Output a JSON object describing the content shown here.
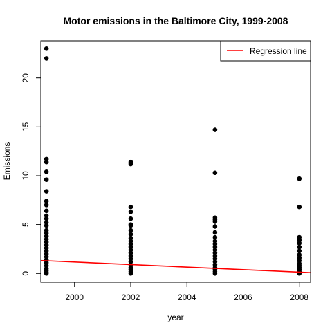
{
  "chart_data": {
    "type": "scatter",
    "title": "Motor emissions in the Baltimore City, 1999-2008",
    "xlabel": "year",
    "ylabel": "Emissions",
    "xlim": [
      1998.8,
      2008.4
    ],
    "ylim": [
      -0.9,
      23.8
    ],
    "x_ticks": [
      2000,
      2002,
      2004,
      2006,
      2008
    ],
    "y_ticks": [
      0,
      5,
      10,
      15,
      20
    ],
    "grid": false,
    "legend": {
      "position": "top-right",
      "entries": [
        {
          "label": "Regression line",
          "color": "#ff0000"
        }
      ]
    },
    "series": [
      {
        "kind": "points",
        "color": "#000000",
        "points": [
          {
            "x": 1999,
            "y": 23.0
          },
          {
            "x": 1999,
            "y": 22.0
          },
          {
            "x": 1999,
            "y": 11.7
          },
          {
            "x": 1999,
            "y": 11.4
          },
          {
            "x": 1999,
            "y": 10.4
          },
          {
            "x": 1999,
            "y": 9.6
          },
          {
            "x": 1999,
            "y": 8.4
          },
          {
            "x": 1999,
            "y": 7.4
          },
          {
            "x": 1999,
            "y": 7.0
          },
          {
            "x": 1999,
            "y": 6.4
          },
          {
            "x": 1999,
            "y": 5.9
          },
          {
            "x": 1999,
            "y": 5.6
          },
          {
            "x": 1999,
            "y": 5.2
          },
          {
            "x": 1999,
            "y": 4.9
          },
          {
            "x": 1999,
            "y": 4.4
          },
          {
            "x": 1999,
            "y": 4.1
          },
          {
            "x": 1999,
            "y": 3.8
          },
          {
            "x": 1999,
            "y": 3.5
          },
          {
            "x": 1999,
            "y": 3.2
          },
          {
            "x": 1999,
            "y": 2.9
          },
          {
            "x": 1999,
            "y": 2.6
          },
          {
            "x": 1999,
            "y": 2.3
          },
          {
            "x": 1999,
            "y": 2.0
          },
          {
            "x": 1999,
            "y": 1.7
          },
          {
            "x": 1999,
            "y": 1.4
          },
          {
            "x": 1999,
            "y": 1.1
          },
          {
            "x": 1999,
            "y": 0.8
          },
          {
            "x": 1999,
            "y": 0.5
          },
          {
            "x": 1999,
            "y": 0.3
          },
          {
            "x": 1999,
            "y": 0.1
          },
          {
            "x": 1999,
            "y": 0.0
          },
          {
            "x": 2002,
            "y": 11.4
          },
          {
            "x": 2002,
            "y": 11.2
          },
          {
            "x": 2002,
            "y": 6.8
          },
          {
            "x": 2002,
            "y": 6.3
          },
          {
            "x": 2002,
            "y": 5.6
          },
          {
            "x": 2002,
            "y": 5.0
          },
          {
            "x": 2002,
            "y": 4.9
          },
          {
            "x": 2002,
            "y": 4.4
          },
          {
            "x": 2002,
            "y": 4.0
          },
          {
            "x": 2002,
            "y": 3.6
          },
          {
            "x": 2002,
            "y": 3.3
          },
          {
            "x": 2002,
            "y": 3.0
          },
          {
            "x": 2002,
            "y": 2.7
          },
          {
            "x": 2002,
            "y": 2.4
          },
          {
            "x": 2002,
            "y": 2.1
          },
          {
            "x": 2002,
            "y": 1.8
          },
          {
            "x": 2002,
            "y": 1.5
          },
          {
            "x": 2002,
            "y": 1.2
          },
          {
            "x": 2002,
            "y": 0.9
          },
          {
            "x": 2002,
            "y": 0.6
          },
          {
            "x": 2002,
            "y": 0.4
          },
          {
            "x": 2002,
            "y": 0.2
          },
          {
            "x": 2002,
            "y": 0.0
          },
          {
            "x": 2005,
            "y": 14.7
          },
          {
            "x": 2005,
            "y": 10.3
          },
          {
            "x": 2005,
            "y": 5.7
          },
          {
            "x": 2005,
            "y": 5.5
          },
          {
            "x": 2005,
            "y": 5.3
          },
          {
            "x": 2005,
            "y": 4.8
          },
          {
            "x": 2005,
            "y": 4.2
          },
          {
            "x": 2005,
            "y": 3.7
          },
          {
            "x": 2005,
            "y": 3.3
          },
          {
            "x": 2005,
            "y": 3.0
          },
          {
            "x": 2005,
            "y": 2.7
          },
          {
            "x": 2005,
            "y": 2.4
          },
          {
            "x": 2005,
            "y": 2.1
          },
          {
            "x": 2005,
            "y": 1.8
          },
          {
            "x": 2005,
            "y": 1.5
          },
          {
            "x": 2005,
            "y": 1.2
          },
          {
            "x": 2005,
            "y": 0.9
          },
          {
            "x": 2005,
            "y": 0.6
          },
          {
            "x": 2005,
            "y": 0.4
          },
          {
            "x": 2005,
            "y": 0.2
          },
          {
            "x": 2005,
            "y": 0.0
          },
          {
            "x": 2008,
            "y": 9.7
          },
          {
            "x": 2008,
            "y": 6.8
          },
          {
            "x": 2008,
            "y": 3.7
          },
          {
            "x": 2008,
            "y": 3.4
          },
          {
            "x": 2008,
            "y": 3.1
          },
          {
            "x": 2008,
            "y": 2.7
          },
          {
            "x": 2008,
            "y": 2.3
          },
          {
            "x": 2008,
            "y": 1.9
          },
          {
            "x": 2008,
            "y": 1.6
          },
          {
            "x": 2008,
            "y": 1.3
          },
          {
            "x": 2008,
            "y": 1.0
          },
          {
            "x": 2008,
            "y": 0.8
          },
          {
            "x": 2008,
            "y": 0.6
          },
          {
            "x": 2008,
            "y": 0.4
          },
          {
            "x": 2008,
            "y": 0.2
          },
          {
            "x": 2008,
            "y": 0.1
          },
          {
            "x": 2008,
            "y": 0.0
          }
        ]
      },
      {
        "kind": "line",
        "name": "Regression line",
        "color": "#ff0000",
        "points": [
          {
            "x": 1998.8,
            "y": 1.32
          },
          {
            "x": 2008.4,
            "y": 0.08
          }
        ]
      }
    ]
  }
}
